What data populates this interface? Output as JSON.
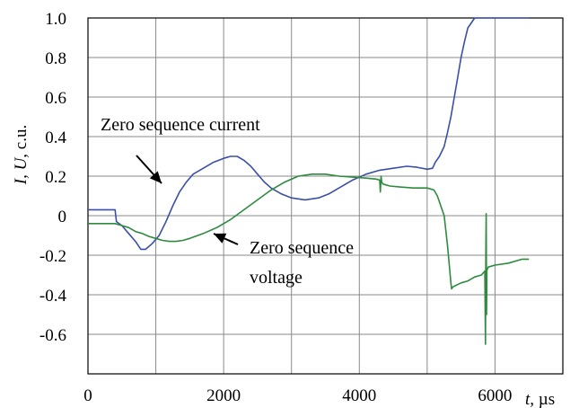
{
  "chart_data": {
    "type": "line",
    "title": "",
    "xlabel": "t, µs",
    "ylabel": "I, U, c.u.",
    "grid": true,
    "legend": "none",
    "xlim": [
      0,
      7000
    ],
    "ylim": [
      -0.8,
      1.0
    ],
    "x_ticks": [
      {
        "value": 0,
        "label": "0"
      },
      {
        "value": 2000,
        "label": "2000"
      },
      {
        "value": 4000,
        "label": "4000"
      },
      {
        "value": 6000,
        "label": "6000"
      }
    ],
    "y_ticks": [
      {
        "value": 1.0,
        "label": "1.0"
      },
      {
        "value": 0.8,
        "label": "0.8"
      },
      {
        "value": 0.6,
        "label": "0.6"
      },
      {
        "value": 0.4,
        "label": "0.4"
      },
      {
        "value": 0.2,
        "label": "0.2"
      },
      {
        "value": 0.0,
        "label": "0"
      },
      {
        "value": -0.2,
        "label": "-0.2"
      },
      {
        "value": -0.4,
        "label": "-0.4"
      },
      {
        "value": -0.6,
        "label": "-0.6"
      }
    ],
    "x_axis_title": {
      "t": "t,",
      "unit": "µs"
    },
    "y_axis_title": {
      "I": "I,",
      "U": "U,",
      "unit": "c.u."
    },
    "annotations": [
      {
        "text": "Zero sequence current",
        "series": "current"
      },
      {
        "text_lines": [
          "Zero sequence",
          "voltage"
        ],
        "series": "voltage"
      }
    ],
    "series": [
      {
        "id": "current",
        "color": "#3c4fa8",
        "x": [
          0,
          400,
          420,
          500,
          600,
          700,
          780,
          850,
          950,
          1050,
          1150,
          1250,
          1350,
          1450,
          1550,
          1700,
          1850,
          2000,
          2100,
          2200,
          2300,
          2400,
          2500,
          2600,
          2700,
          2850,
          3000,
          3200,
          3400,
          3550,
          3700,
          3900,
          4100,
          4300,
          4500,
          4700,
          4850,
          5000,
          5080,
          5120,
          5180,
          5250,
          5300,
          5350,
          5400,
          5450,
          5500,
          5550,
          5600,
          5700,
          6500
        ],
        "y": [
          0.03,
          0.03,
          -0.03,
          -0.05,
          -0.09,
          -0.13,
          -0.17,
          -0.17,
          -0.14,
          -0.1,
          -0.03,
          0.05,
          0.12,
          0.17,
          0.21,
          0.24,
          0.27,
          0.29,
          0.3,
          0.3,
          0.28,
          0.25,
          0.21,
          0.17,
          0.14,
          0.11,
          0.09,
          0.08,
          0.09,
          0.11,
          0.14,
          0.18,
          0.21,
          0.23,
          0.24,
          0.25,
          0.245,
          0.235,
          0.24,
          0.27,
          0.3,
          0.35,
          0.42,
          0.5,
          0.6,
          0.7,
          0.8,
          0.88,
          0.95,
          1.0,
          1.0
        ]
      },
      {
        "id": "voltage",
        "color": "#2e8b3e",
        "x": [
          0,
          400,
          500,
          600,
          700,
          800,
          900,
          1000,
          1100,
          1200,
          1300,
          1400,
          1500,
          1700,
          1900,
          2100,
          2300,
          2500,
          2700,
          2900,
          3100,
          3300,
          3500,
          3700,
          3900,
          4100,
          4250,
          4300,
          4310,
          4320,
          4330,
          4350,
          4450,
          4600,
          4800,
          5000,
          5100,
          5150,
          5200,
          5250,
          5300,
          5350,
          5360,
          5380,
          5500,
          5600,
          5700,
          5800,
          5850,
          5860,
          5865,
          5870,
          5875,
          5880,
          5890,
          5900,
          6000,
          6200,
          6400,
          6500
        ],
        "y": [
          -0.04,
          -0.04,
          -0.05,
          -0.06,
          -0.08,
          -0.09,
          -0.105,
          -0.115,
          -0.125,
          -0.13,
          -0.13,
          -0.125,
          -0.115,
          -0.09,
          -0.06,
          -0.02,
          0.03,
          0.08,
          0.13,
          0.17,
          0.2,
          0.21,
          0.21,
          0.2,
          0.195,
          0.19,
          0.185,
          0.18,
          0.12,
          0.2,
          0.17,
          0.16,
          0.15,
          0.145,
          0.14,
          0.14,
          0.13,
          0.1,
          0.05,
          0.0,
          -0.15,
          -0.34,
          -0.37,
          -0.36,
          -0.34,
          -0.33,
          -0.31,
          -0.3,
          -0.28,
          -0.65,
          -0.2,
          0.01,
          -0.5,
          -0.27,
          -0.27,
          -0.26,
          -0.25,
          -0.24,
          -0.22,
          -0.22
        ]
      }
    ]
  }
}
